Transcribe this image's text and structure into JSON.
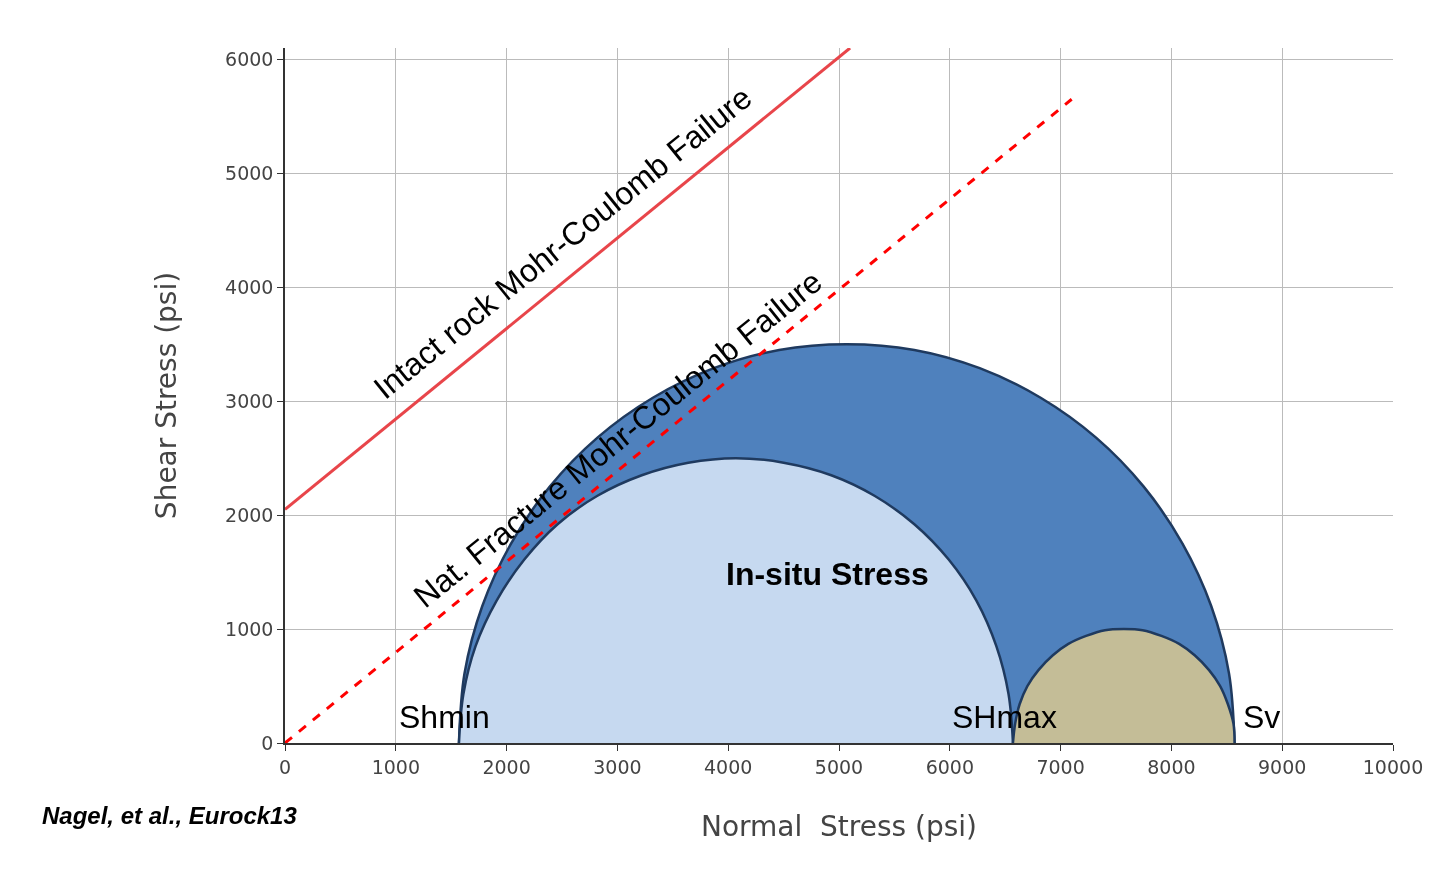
{
  "chart_data": {
    "type": "area",
    "xlabel": "Normal  Stress (psi)",
    "ylabel": "Shear Stress (psi)",
    "xlim": [
      0,
      10000
    ],
    "ylim": [
      0,
      6100
    ],
    "xticks": [
      0,
      1000,
      2000,
      3000,
      4000,
      5000,
      6000,
      7000,
      8000,
      9000,
      10000
    ],
    "yticks": [
      0,
      1000,
      2000,
      3000,
      4000,
      5000,
      6000
    ],
    "grid": true,
    "series": [
      {
        "color": "#4f81bd",
        "x": [
          8570,
          8520,
          8360,
          8100,
          7750,
          7320,
          6820,
          6270,
          5680,
          5070,
          4460,
          3870,
          3320,
          2820,
          2390,
          2040,
          1780,
          1620,
          1570
        ],
        "values": [
          0,
          610,
          1200,
          1750,
          2250,
          2680,
          3030,
          3290,
          3450,
          3500,
          3450,
          3290,
          3030,
          2680,
          2250,
          1750,
          1200,
          610,
          0
        ]
      },
      {
        "color": "#c6d9f0",
        "x": [
          6570,
          6530,
          6420,
          6240,
          5990,
          5680,
          5320,
          4930,
          4500,
          4070,
          3640,
          3220,
          2820,
          2460,
          2160,
          1910,
          1720,
          1610,
          1570
        ],
        "values": [
          0,
          430,
          850,
          1250,
          1610,
          1920,
          2170,
          2350,
          2460,
          2500,
          2460,
          2350,
          2170,
          1920,
          1610,
          1250,
          850,
          430,
          0
        ]
      },
      {
        "color": "#c4bd97",
        "x": [
          8570,
          8560,
          8510,
          8440,
          8340,
          8210,
          8070,
          7910,
          7740,
          7570,
          7400,
          7230,
          7070,
          6930,
          6800,
          6700,
          6630,
          6590,
          6570
        ],
        "values": [
          0,
          170,
          340,
          500,
          640,
          770,
          870,
          940,
          990,
          1000,
          990,
          940,
          870,
          770,
          640,
          500,
          340,
          170,
          0
        ]
      },
      {
        "type": "line",
        "color": "#e8454a",
        "line_style": "solid",
        "x": [
          0,
          5100
        ],
        "values": [
          2050,
          6100
        ]
      },
      {
        "type": "line",
        "color": "#ff0000",
        "line_style": "dashed",
        "x": [
          0,
          7100
        ],
        "values": [
          0,
          5650
        ]
      }
    ],
    "annotations": [
      "Intact rock Mohr-Coulomb Failure",
      {
        "text": "Nat. Fracture Mohr-Coulomb Failure",
        "x": 3130,
        "y": 2490
      },
      "In-situ Stress",
      {
        "text": "Shmin",
        "x": 1570,
        "y": 0
      },
      {
        "text": "SHmax",
        "x": 6570,
        "y": 0
      },
      {
        "text": "Sv",
        "x": 8570,
        "y": 0
      },
      "Nagel, et al., Eurock13"
    ]
  }
}
